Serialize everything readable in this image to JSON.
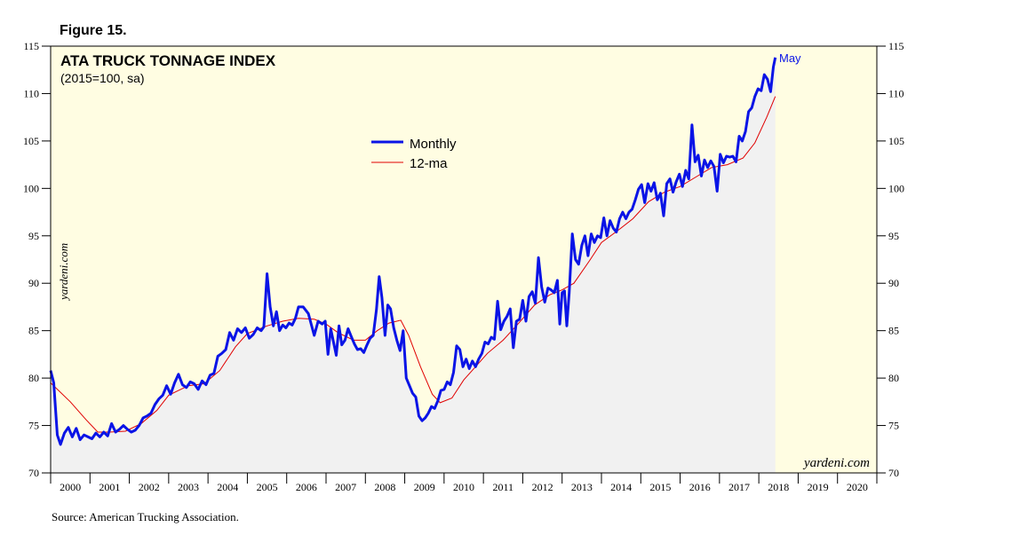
{
  "figure_label": "Figure 15.",
  "source_note": "Source: American Trucking Association.",
  "colors": {
    "background": "#fffde2",
    "area_fill": "#f1f1f1",
    "monthly_line": "#0a14e6",
    "ma_line": "#e00000",
    "axis": "#000000",
    "text": "#000000",
    "end_label": "#0a14e6"
  },
  "chart_data": {
    "type": "line",
    "title": "ATA TRUCK TONNAGE INDEX",
    "subtitle": "(2015=100, sa)",
    "watermark_side": "yardeni.com",
    "watermark_bottom": "yardeni.com",
    "end_label": "May",
    "ylim": [
      70,
      115
    ],
    "xlim": [
      2000,
      2021
    ],
    "y_ticks": [
      "70",
      "75",
      "80",
      "85",
      "90",
      "95",
      "100",
      "105",
      "110",
      "115"
    ],
    "x_tick_labels": [
      "2000",
      "2001",
      "2002",
      "2003",
      "2004",
      "2005",
      "2006",
      "2007",
      "2008",
      "2009",
      "2010",
      "2011",
      "2012",
      "2013",
      "2014",
      "2015",
      "2016",
      "2017",
      "2018",
      "2019",
      "2020"
    ],
    "legend": {
      "position": "top-center",
      "entries": [
        "Monthly",
        "12-ma"
      ]
    },
    "series": [
      {
        "name": "Monthly",
        "points": [
          [
            2000.0,
            80.8
          ],
          [
            2000.08,
            79.5
          ],
          [
            2000.17,
            74.0
          ],
          [
            2000.25,
            73.0
          ],
          [
            2000.35,
            74.2
          ],
          [
            2000.45,
            74.8
          ],
          [
            2000.55,
            73.8
          ],
          [
            2000.65,
            74.7
          ],
          [
            2000.75,
            73.5
          ],
          [
            2000.85,
            74.0
          ],
          [
            2000.95,
            73.8
          ],
          [
            2001.05,
            73.6
          ],
          [
            2001.15,
            74.2
          ],
          [
            2001.25,
            73.8
          ],
          [
            2001.35,
            74.3
          ],
          [
            2001.45,
            73.9
          ],
          [
            2001.55,
            75.2
          ],
          [
            2001.65,
            74.3
          ],
          [
            2001.75,
            74.6
          ],
          [
            2001.85,
            75.0
          ],
          [
            2001.95,
            74.6
          ],
          [
            2002.05,
            74.3
          ],
          [
            2002.15,
            74.5
          ],
          [
            2002.25,
            75.0
          ],
          [
            2002.35,
            75.8
          ],
          [
            2002.45,
            76.0
          ],
          [
            2002.55,
            76.3
          ],
          [
            2002.65,
            77.2
          ],
          [
            2002.75,
            77.8
          ],
          [
            2002.85,
            78.2
          ],
          [
            2002.95,
            79.2
          ],
          [
            2003.05,
            78.3
          ],
          [
            2003.15,
            79.5
          ],
          [
            2003.25,
            80.4
          ],
          [
            2003.35,
            79.3
          ],
          [
            2003.45,
            79.0
          ],
          [
            2003.55,
            79.6
          ],
          [
            2003.65,
            79.4
          ],
          [
            2003.75,
            78.8
          ],
          [
            2003.85,
            79.7
          ],
          [
            2003.95,
            79.3
          ],
          [
            2004.05,
            80.3
          ],
          [
            2004.15,
            80.5
          ],
          [
            2004.25,
            82.3
          ],
          [
            2004.35,
            82.6
          ],
          [
            2004.45,
            83.0
          ],
          [
            2004.55,
            84.8
          ],
          [
            2004.65,
            84.0
          ],
          [
            2004.75,
            85.2
          ],
          [
            2004.85,
            84.8
          ],
          [
            2004.95,
            85.3
          ],
          [
            2005.05,
            84.2
          ],
          [
            2005.15,
            84.6
          ],
          [
            2005.25,
            85.3
          ],
          [
            2005.35,
            85.0
          ],
          [
            2005.42,
            85.4
          ],
          [
            2005.5,
            91.0
          ],
          [
            2005.58,
            87.5
          ],
          [
            2005.66,
            85.5
          ],
          [
            2005.74,
            87.0
          ],
          [
            2005.82,
            85.0
          ],
          [
            2005.9,
            85.6
          ],
          [
            2005.98,
            85.3
          ],
          [
            2006.06,
            85.8
          ],
          [
            2006.14,
            85.6
          ],
          [
            2006.22,
            86.3
          ],
          [
            2006.3,
            87.5
          ],
          [
            2006.42,
            87.5
          ],
          [
            2006.55,
            86.8
          ],
          [
            2006.7,
            84.5
          ],
          [
            2006.8,
            86.0
          ],
          [
            2006.9,
            85.7
          ],
          [
            2006.98,
            86.0
          ],
          [
            2007.05,
            82.5
          ],
          [
            2007.12,
            85.2
          ],
          [
            2007.19,
            83.8
          ],
          [
            2007.26,
            82.4
          ],
          [
            2007.33,
            85.5
          ],
          [
            2007.4,
            83.5
          ],
          [
            2007.48,
            84.0
          ],
          [
            2007.56,
            85.2
          ],
          [
            2007.64,
            84.4
          ],
          [
            2007.72,
            83.6
          ],
          [
            2007.8,
            83.0
          ],
          [
            2007.88,
            83.1
          ],
          [
            2007.96,
            82.7
          ],
          [
            2008.04,
            83.5
          ],
          [
            2008.12,
            84.2
          ],
          [
            2008.2,
            84.5
          ],
          [
            2008.28,
            87.2
          ],
          [
            2008.35,
            90.7
          ],
          [
            2008.42,
            88.5
          ],
          [
            2008.5,
            84.5
          ],
          [
            2008.57,
            87.7
          ],
          [
            2008.64,
            87.3
          ],
          [
            2008.72,
            85.3
          ],
          [
            2008.8,
            84.0
          ],
          [
            2008.88,
            82.9
          ],
          [
            2008.96,
            85.0
          ],
          [
            2009.04,
            80.0
          ],
          [
            2009.12,
            79.2
          ],
          [
            2009.2,
            78.4
          ],
          [
            2009.28,
            78.0
          ],
          [
            2009.36,
            76.0
          ],
          [
            2009.44,
            75.5
          ],
          [
            2009.52,
            75.8
          ],
          [
            2009.6,
            76.3
          ],
          [
            2009.68,
            77.0
          ],
          [
            2009.76,
            76.8
          ],
          [
            2009.84,
            77.6
          ],
          [
            2009.92,
            78.7
          ],
          [
            2010.0,
            78.8
          ],
          [
            2010.08,
            79.6
          ],
          [
            2010.16,
            79.3
          ],
          [
            2010.24,
            80.6
          ],
          [
            2010.32,
            83.4
          ],
          [
            2010.4,
            83.0
          ],
          [
            2010.48,
            81.2
          ],
          [
            2010.56,
            82.0
          ],
          [
            2010.64,
            81.0
          ],
          [
            2010.72,
            81.8
          ],
          [
            2010.8,
            81.2
          ],
          [
            2010.88,
            82.0
          ],
          [
            2010.96,
            82.6
          ],
          [
            2011.04,
            83.8
          ],
          [
            2011.12,
            83.6
          ],
          [
            2011.2,
            84.3
          ],
          [
            2011.28,
            84.1
          ],
          [
            2011.36,
            88.1
          ],
          [
            2011.44,
            85.1
          ],
          [
            2011.52,
            86.0
          ],
          [
            2011.6,
            86.5
          ],
          [
            2011.68,
            87.3
          ],
          [
            2011.76,
            83.2
          ],
          [
            2011.84,
            86.0
          ],
          [
            2011.92,
            86.2
          ],
          [
            2012.0,
            88.2
          ],
          [
            2012.08,
            86.0
          ],
          [
            2012.16,
            88.6
          ],
          [
            2012.24,
            89.1
          ],
          [
            2012.32,
            87.9
          ],
          [
            2012.4,
            92.7
          ],
          [
            2012.48,
            89.6
          ],
          [
            2012.56,
            88.0
          ],
          [
            2012.64,
            89.5
          ],
          [
            2012.72,
            89.3
          ],
          [
            2012.8,
            89.0
          ],
          [
            2012.88,
            90.3
          ],
          [
            2012.94,
            85.7
          ],
          [
            2013.0,
            89.0
          ],
          [
            2013.06,
            89.2
          ],
          [
            2013.12,
            85.5
          ],
          [
            2013.18,
            89.0
          ],
          [
            2013.26,
            95.2
          ],
          [
            2013.34,
            92.5
          ],
          [
            2013.42,
            92.0
          ],
          [
            2013.5,
            94.0
          ],
          [
            2013.58,
            95.0
          ],
          [
            2013.66,
            92.9
          ],
          [
            2013.74,
            95.2
          ],
          [
            2013.82,
            94.3
          ],
          [
            2013.9,
            95.0
          ],
          [
            2013.98,
            94.8
          ],
          [
            2014.06,
            96.9
          ],
          [
            2014.14,
            95.0
          ],
          [
            2014.22,
            96.6
          ],
          [
            2014.3,
            95.8
          ],
          [
            2014.38,
            95.4
          ],
          [
            2014.46,
            96.8
          ],
          [
            2014.54,
            97.5
          ],
          [
            2014.62,
            96.8
          ],
          [
            2014.7,
            97.5
          ],
          [
            2014.78,
            97.8
          ],
          [
            2014.86,
            98.8
          ],
          [
            2014.94,
            99.9
          ],
          [
            2015.02,
            100.4
          ],
          [
            2015.1,
            98.5
          ],
          [
            2015.18,
            100.5
          ],
          [
            2015.26,
            99.7
          ],
          [
            2015.34,
            100.6
          ],
          [
            2015.42,
            98.8
          ],
          [
            2015.5,
            99.5
          ],
          [
            2015.58,
            97.1
          ],
          [
            2015.66,
            100.5
          ],
          [
            2015.74,
            101.0
          ],
          [
            2015.82,
            99.6
          ],
          [
            2015.9,
            100.7
          ],
          [
            2015.98,
            101.5
          ],
          [
            2016.06,
            100.2
          ],
          [
            2016.14,
            101.9
          ],
          [
            2016.22,
            101.0
          ],
          [
            2016.3,
            106.7
          ],
          [
            2016.38,
            102.8
          ],
          [
            2016.46,
            103.5
          ],
          [
            2016.54,
            101.3
          ],
          [
            2016.62,
            103.0
          ],
          [
            2016.7,
            102.2
          ],
          [
            2016.78,
            102.9
          ],
          [
            2016.86,
            102.3
          ],
          [
            2016.94,
            99.7
          ],
          [
            2017.02,
            103.6
          ],
          [
            2017.1,
            102.7
          ],
          [
            2017.18,
            103.4
          ],
          [
            2017.26,
            103.3
          ],
          [
            2017.34,
            103.4
          ],
          [
            2017.42,
            102.8
          ],
          [
            2017.5,
            105.5
          ],
          [
            2017.58,
            105.0
          ],
          [
            2017.66,
            106.0
          ],
          [
            2017.74,
            108.1
          ],
          [
            2017.82,
            108.5
          ],
          [
            2017.9,
            109.7
          ],
          [
            2017.98,
            110.5
          ],
          [
            2018.06,
            110.3
          ],
          [
            2018.14,
            112.0
          ],
          [
            2018.22,
            111.5
          ],
          [
            2018.3,
            110.2
          ],
          [
            2018.37,
            112.8
          ],
          [
            2018.42,
            113.8
          ]
        ]
      },
      {
        "name": "12-ma",
        "points": [
          [
            2000.0,
            79.5
          ],
          [
            2000.5,
            77.5
          ],
          [
            2000.9,
            75.6
          ],
          [
            2001.2,
            74.3
          ],
          [
            2001.5,
            74.3
          ],
          [
            2001.9,
            74.4
          ],
          [
            2002.3,
            75.2
          ],
          [
            2002.7,
            76.6
          ],
          [
            2003.0,
            78.2
          ],
          [
            2003.5,
            79.2
          ],
          [
            2003.9,
            79.4
          ],
          [
            2004.3,
            80.8
          ],
          [
            2004.7,
            83.3
          ],
          [
            2005.0,
            84.7
          ],
          [
            2005.5,
            85.5
          ],
          [
            2005.9,
            86.0
          ],
          [
            2006.3,
            86.3
          ],
          [
            2006.7,
            86.2
          ],
          [
            2007.0,
            85.7
          ],
          [
            2007.3,
            84.8
          ],
          [
            2007.7,
            84.0
          ],
          [
            2008.0,
            84.0
          ],
          [
            2008.3,
            85.0
          ],
          [
            2008.6,
            85.8
          ],
          [
            2008.9,
            86.1
          ],
          [
            2009.1,
            84.5
          ],
          [
            2009.4,
            81.2
          ],
          [
            2009.7,
            78.3
          ],
          [
            2009.9,
            77.4
          ],
          [
            2010.2,
            77.9
          ],
          [
            2010.5,
            79.8
          ],
          [
            2010.8,
            81.2
          ],
          [
            2011.1,
            82.6
          ],
          [
            2011.5,
            84.0
          ],
          [
            2011.9,
            85.8
          ],
          [
            2012.3,
            87.7
          ],
          [
            2012.7,
            88.8
          ],
          [
            2013.0,
            89.3
          ],
          [
            2013.3,
            90.0
          ],
          [
            2013.7,
            92.4
          ],
          [
            2014.0,
            94.3
          ],
          [
            2014.4,
            95.5
          ],
          [
            2014.8,
            96.8
          ],
          [
            2015.2,
            98.6
          ],
          [
            2015.6,
            99.6
          ],
          [
            2016.0,
            100.2
          ],
          [
            2016.4,
            101.2
          ],
          [
            2016.8,
            102.2
          ],
          [
            2017.2,
            102.5
          ],
          [
            2017.6,
            103.2
          ],
          [
            2017.9,
            104.8
          ],
          [
            2018.2,
            107.5
          ],
          [
            2018.42,
            109.7
          ]
        ]
      }
    ]
  }
}
